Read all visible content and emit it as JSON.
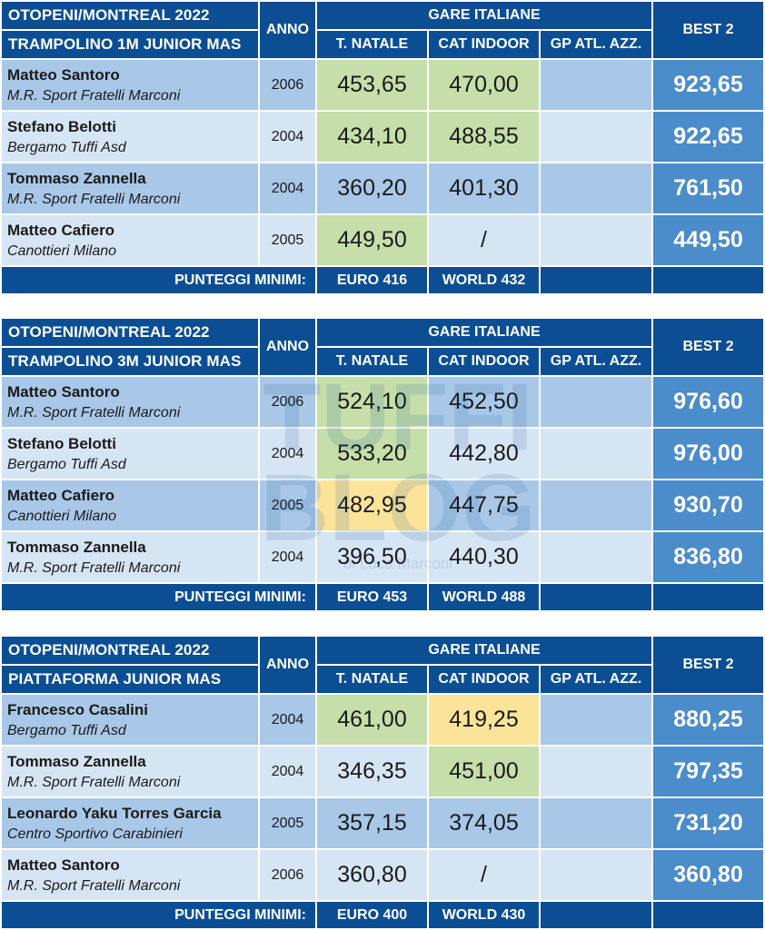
{
  "tables": [
    {
      "competition": "OTOPENI/MONTREAL 2022",
      "event": "TRAMPOLINO 1M JUNIOR MAS",
      "year_header": "ANNO",
      "group_header": "GARE ITALIANE",
      "columns": [
        "T. NATALE",
        "CAT INDOOR",
        "GP ATL. AZZ."
      ],
      "best_header": "BEST 2",
      "rows": [
        {
          "name": "Matteo Santoro",
          "club": "M.R. Sport Fratelli Marconi",
          "year": "2006",
          "tnatale": "453,65",
          "catindoor": "470,00",
          "gp": "",
          "best": "923,65",
          "hl": [
            "green",
            "green",
            ""
          ]
        },
        {
          "name": "Stefano Belotti",
          "club": "Bergamo Tuffi Asd",
          "year": "2004",
          "tnatale": "434,10",
          "catindoor": "488,55",
          "gp": "",
          "best": "922,65",
          "hl": [
            "green",
            "green",
            ""
          ]
        },
        {
          "name": "Tommaso Zannella",
          "club": "M.R. Sport Fratelli Marconi",
          "year": "2004",
          "tnatale": "360,20",
          "catindoor": "401,30",
          "gp": "",
          "best": "761,50",
          "hl": [
            "",
            "",
            ""
          ]
        },
        {
          "name": "Matteo Cafiero",
          "club": "Canottieri Milano",
          "year": "2005",
          "tnatale": "449,50",
          "catindoor": "/",
          "gp": "",
          "best": "449,50",
          "hl": [
            "green",
            "",
            ""
          ]
        }
      ],
      "footer_label": "PUNTEGGI MINIMI:",
      "euro_min": "EURO 416",
      "world_min": "WORLD 432"
    },
    {
      "competition": "OTOPENI/MONTREAL 2022",
      "event": "TRAMPOLINO 3M JUNIOR MAS",
      "year_header": "ANNO",
      "group_header": "GARE ITALIANE",
      "columns": [
        "T. NATALE",
        "CAT INDOOR",
        "GP ATL. AZZ."
      ],
      "best_header": "BEST 2",
      "rows": [
        {
          "name": "Matteo Santoro",
          "club": "M.R. Sport Fratelli Marconi",
          "year": "2006",
          "tnatale": "524,10",
          "catindoor": "452,50",
          "gp": "",
          "best": "976,60",
          "hl": [
            "green",
            "",
            ""
          ]
        },
        {
          "name": "Stefano Belotti",
          "club": "Bergamo Tuffi Asd",
          "year": "2004",
          "tnatale": "533,20",
          "catindoor": "442,80",
          "gp": "",
          "best": "976,00",
          "hl": [
            "green",
            "",
            ""
          ]
        },
        {
          "name": "Matteo Cafiero",
          "club": "Canottieri Milano",
          "year": "2005",
          "tnatale": "482,95",
          "catindoor": "447,75",
          "gp": "",
          "best": "930,70",
          "hl": [
            "yellow",
            "",
            ""
          ]
        },
        {
          "name": "Tommaso Zannella",
          "club": "M.R. Sport Fratelli Marconi",
          "year": "2004",
          "tnatale": "396,50",
          "catindoor": "440,30",
          "gp": "",
          "best": "836,80",
          "hl": [
            "",
            "",
            ""
          ]
        }
      ],
      "footer_label": "PUNTEGGI MINIMI:",
      "euro_min": "EURO 453",
      "world_min": "WORLD 488"
    },
    {
      "competition": "OTOPENI/MONTREAL 2022",
      "event": "PIATTAFORMA JUNIOR MAS",
      "year_header": "ANNO",
      "group_header": "GARE ITALIANE",
      "columns": [
        "T. NATALE",
        "CAT INDOOR",
        "GP ATL. AZZ."
      ],
      "best_header": "BEST 2",
      "rows": [
        {
          "name": "Francesco Casalini",
          "club": "Bergamo Tuffi Asd",
          "year": "2004",
          "tnatale": "461,00",
          "catindoor": "419,25",
          "gp": "",
          "best": "880,25",
          "hl": [
            "green",
            "yellow",
            ""
          ]
        },
        {
          "name": "Tommaso Zannella",
          "club": "M.R. Sport Fratelli Marconi",
          "year": "2004",
          "tnatale": "346,35",
          "catindoor": "451,00",
          "gp": "",
          "best": "797,35",
          "hl": [
            "",
            "green",
            ""
          ]
        },
        {
          "name": "Leonardo Yaku Torres Garcia",
          "club": "Centro Sportivo Carabinieri",
          "year": "2005",
          "tnatale": "357,15",
          "catindoor": "374,05",
          "gp": "",
          "best": "731,20",
          "hl": [
            "",
            "",
            ""
          ]
        },
        {
          "name": "Matteo Santoro",
          "club": "M.R. Sport Fratelli Marconi",
          "year": "2006",
          "tnatale": "360,80",
          "catindoor": "/",
          "gp": "",
          "best": "360,80",
          "hl": [
            "",
            "",
            ""
          ]
        }
      ],
      "footer_label": "PUNTEGGI MINIMI:",
      "euro_min": "EURO 400",
      "world_min": "WORLD 430"
    }
  ],
  "watermark": {
    "line1": "TUFFI",
    "line2": "BLOG",
    "tagline": "di Luca Marconi"
  },
  "colors": {
    "header": "#0b4e93",
    "row_dark": "#a9c8e8",
    "row_light": "#d6e5f4",
    "best_bg": "#4b8ccb",
    "green": "#c6dea9",
    "yellow": "#fbe49a"
  }
}
